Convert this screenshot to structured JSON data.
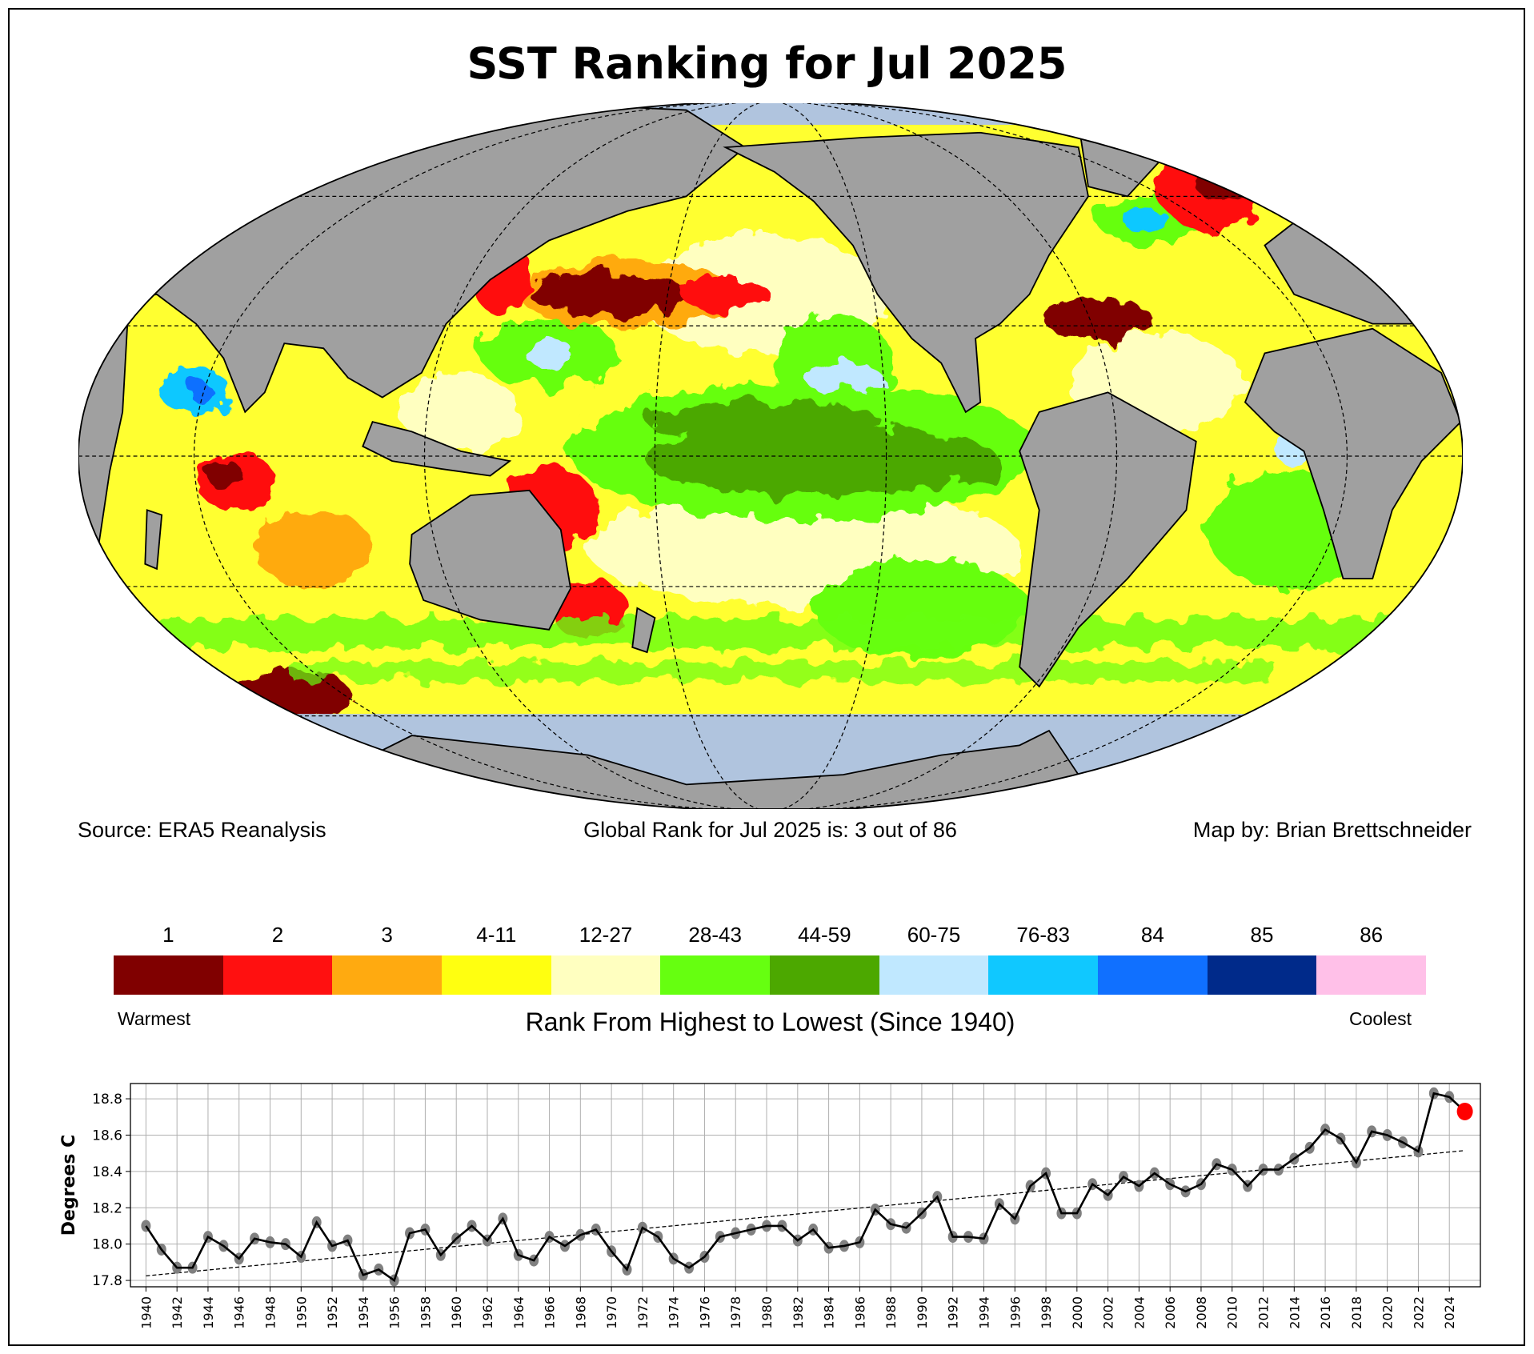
{
  "title": "SST Ranking for Jul 2025",
  "footer": {
    "source": "Source: ERA5 Reanalysis",
    "global_rank": "Global Rank for Jul 2025 is: 3 out of 86",
    "credit": "Map by: Brian Brettschneider"
  },
  "legend": {
    "items": [
      {
        "label": "1",
        "color": "#800000"
      },
      {
        "label": "2",
        "color": "#ff1010"
      },
      {
        "label": "3",
        "color": "#ffaa10"
      },
      {
        "label": "4-11",
        "color": "#ffff10"
      },
      {
        "label": "12-27",
        "color": "#ffffc0"
      },
      {
        "label": "28-43",
        "color": "#66ff10"
      },
      {
        "label": "44-59",
        "color": "#4ca800"
      },
      {
        "label": "60-75",
        "color": "#c0e8ff"
      },
      {
        "label": "76-83",
        "color": "#10c8ff"
      },
      {
        "label": "84",
        "color": "#1070ff"
      },
      {
        "label": "85",
        "color": "#002a8a"
      },
      {
        "label": "86",
        "color": "#ffc0e8"
      }
    ],
    "warmest": "Warmest",
    "coolest": "Coolest",
    "caption": "Rank From Highest to Lowest (Since 1940)"
  },
  "chart_data": {
    "type": "line",
    "title": "",
    "xlabel": "",
    "ylabel": "Degrees C",
    "xlim": [
      1939,
      2026
    ],
    "ylim": [
      17.765,
      18.884
    ],
    "yticks": [
      "17.8",
      "18.0",
      "18.2",
      "18.4",
      "18.6",
      "18.8"
    ],
    "xticks": [
      "1940",
      "1942",
      "1944",
      "1946",
      "1948",
      "1950",
      "1952",
      "1954",
      "1956",
      "1958",
      "1960",
      "1962",
      "1964",
      "1966",
      "1968",
      "1970",
      "1972",
      "1974",
      "1976",
      "1978",
      "1980",
      "1982",
      "1984",
      "1986",
      "1988",
      "1990",
      "1992",
      "1994",
      "1996",
      "1998",
      "2000",
      "2002",
      "2004",
      "2006",
      "2008",
      "2010",
      "2012",
      "2014",
      "2016",
      "2018",
      "2020",
      "2022",
      "2024"
    ],
    "grid": true,
    "x_start": 1940,
    "values": [
      18.1,
      17.97,
      17.87,
      17.87,
      18.04,
      17.99,
      17.92,
      18.03,
      18.01,
      18.0,
      17.93,
      18.12,
      17.99,
      18.02,
      17.83,
      17.86,
      17.8,
      18.06,
      18.08,
      17.94,
      18.03,
      18.1,
      18.02,
      18.14,
      17.94,
      17.91,
      18.04,
      17.99,
      18.05,
      18.08,
      17.96,
      17.86,
      18.09,
      18.04,
      17.92,
      17.87,
      17.93,
      18.04,
      18.06,
      18.08,
      18.1,
      18.1,
      18.02,
      18.08,
      17.98,
      17.99,
      18.01,
      18.19,
      18.11,
      18.09,
      18.17,
      18.26,
      18.04,
      18.04,
      18.03,
      18.22,
      18.14,
      18.32,
      18.39,
      18.17,
      18.17,
      18.33,
      18.27,
      18.37,
      18.32,
      18.39,
      18.33,
      18.29,
      18.33,
      18.44,
      18.41,
      18.32,
      18.41,
      18.41,
      18.47,
      18.53,
      18.63,
      18.58,
      18.45,
      18.62,
      18.6,
      18.56,
      18.51,
      18.83,
      18.81,
      18.73
    ],
    "trend": {
      "x": [
        1940,
        2025
      ],
      "y": [
        17.825,
        18.515
      ]
    },
    "highlight": {
      "year": 2025,
      "color": "#ff0000"
    },
    "marker_color": "#808080",
    "line_color": "#000000"
  }
}
